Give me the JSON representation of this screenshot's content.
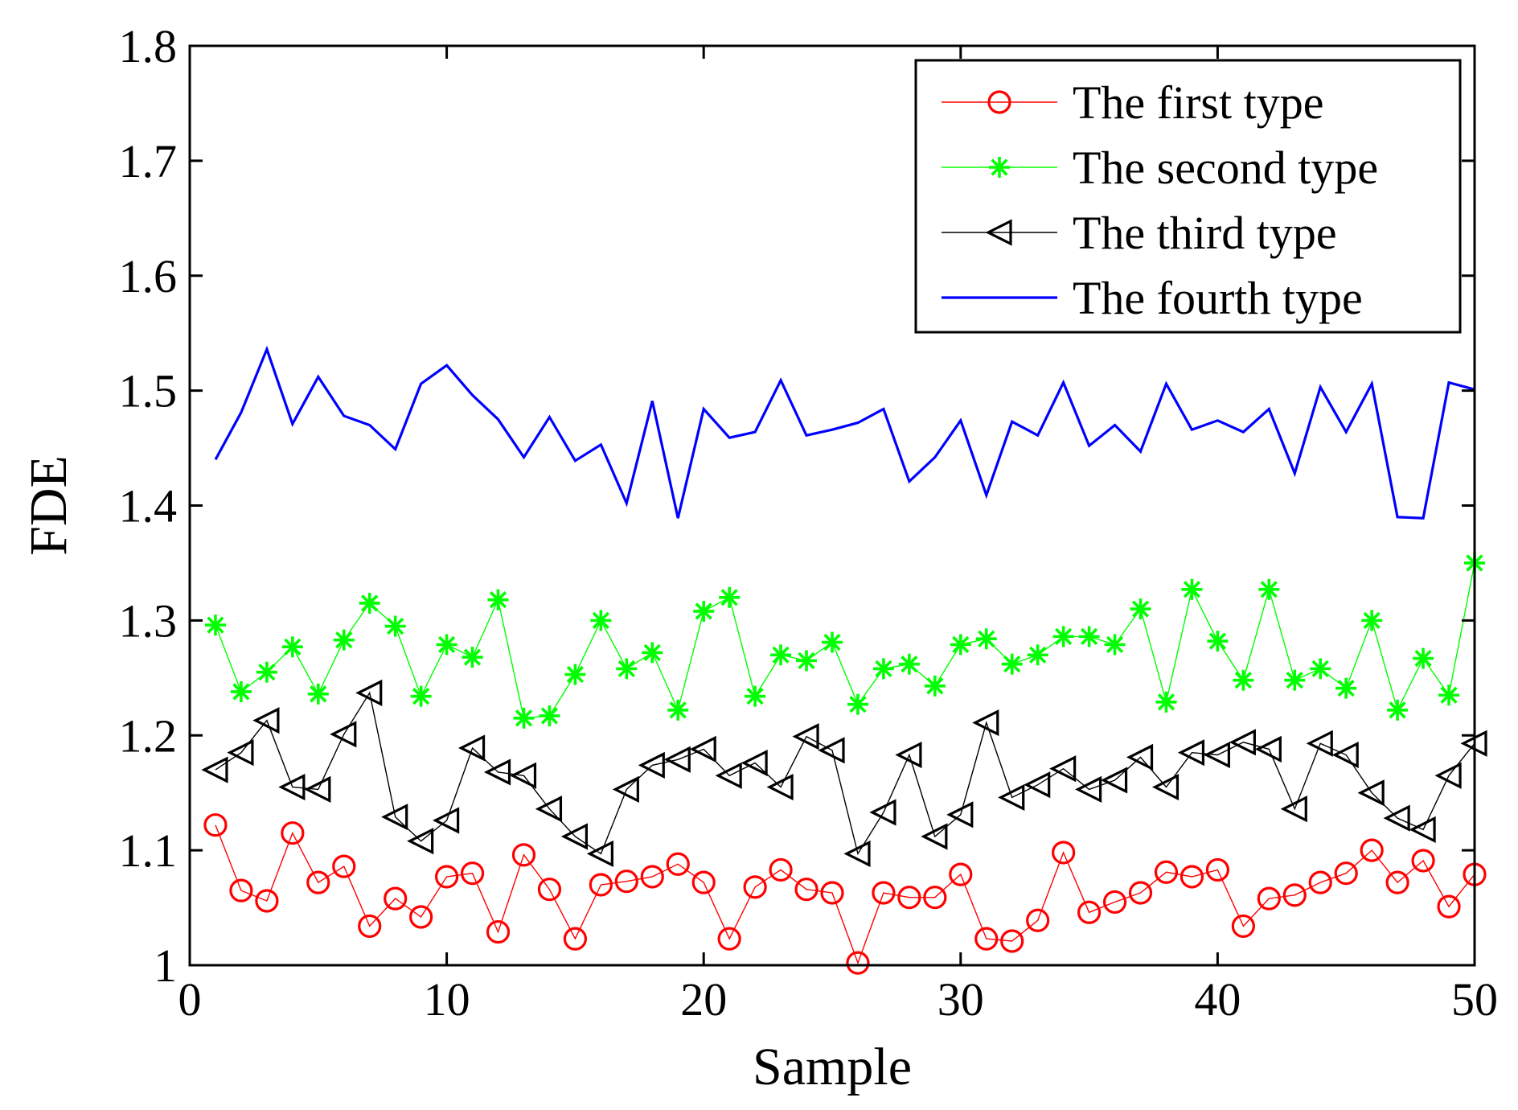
{
  "chart_data": {
    "type": "line",
    "title": "",
    "xlabel": "Sample",
    "ylabel": "FDE",
    "xlim": [
      0,
      50
    ],
    "ylim": [
      1,
      1.8
    ],
    "xticks": [
      0,
      10,
      20,
      30,
      40,
      50
    ],
    "yticks": [
      1,
      1.1,
      1.2,
      1.3,
      1.4,
      1.5,
      1.6,
      1.7,
      1.8
    ],
    "xtick_labels": [
      "0",
      "10",
      "20",
      "30",
      "40",
      "50"
    ],
    "ytick_labels": [
      "1",
      "1.1",
      "1.2",
      "1.3",
      "1.4",
      "1.5",
      "1.6",
      "1.7",
      "1.8"
    ],
    "grid": false,
    "legend_position": "top-right",
    "x": [
      1,
      2,
      3,
      4,
      5,
      6,
      7,
      8,
      9,
      10,
      11,
      12,
      13,
      14,
      15,
      16,
      17,
      18,
      19,
      20,
      21,
      22,
      23,
      24,
      25,
      26,
      27,
      28,
      29,
      30,
      31,
      32,
      33,
      34,
      35,
      36,
      37,
      38,
      39,
      40,
      41,
      42,
      43,
      44,
      45,
      46,
      47,
      48,
      49,
      50
    ],
    "series": [
      {
        "name": "The first type",
        "color": "#ff0000",
        "marker": "circle",
        "values": [
          1.122,
          1.065,
          1.056,
          1.115,
          1.072,
          1.086,
          1.034,
          1.058,
          1.042,
          1.077,
          1.08,
          1.029,
          1.096,
          1.066,
          1.023,
          1.07,
          1.073,
          1.077,
          1.088,
          1.072,
          1.023,
          1.068,
          1.083,
          1.066,
          1.063,
          1.002,
          1.063,
          1.059,
          1.059,
          1.079,
          1.023,
          1.021,
          1.039,
          1.098,
          1.046,
          1.055,
          1.063,
          1.081,
          1.077,
          1.083,
          1.034,
          1.058,
          1.061,
          1.072,
          1.08,
          1.1,
          1.072,
          1.091,
          1.051,
          1.079
        ]
      },
      {
        "name": "The second type",
        "color": "#00ff00",
        "marker": "star",
        "values": [
          1.296,
          1.238,
          1.255,
          1.277,
          1.236,
          1.283,
          1.315,
          1.295,
          1.234,
          1.279,
          1.268,
          1.318,
          1.215,
          1.217,
          1.253,
          1.3,
          1.258,
          1.272,
          1.222,
          1.308,
          1.32,
          1.234,
          1.27,
          1.265,
          1.281,
          1.227,
          1.258,
          1.262,
          1.243,
          1.279,
          1.284,
          1.262,
          1.27,
          1.286,
          1.286,
          1.279,
          1.31,
          1.229,
          1.327,
          1.282,
          1.248,
          1.327,
          1.248,
          1.258,
          1.241,
          1.3,
          1.222,
          1.267,
          1.235,
          1.35
        ]
      },
      {
        "name": "The third type",
        "color": "#000000",
        "marker": "triangle-left",
        "values": [
          1.17,
          1.185,
          1.213,
          1.155,
          1.153,
          1.201,
          1.237,
          1.129,
          1.108,
          1.126,
          1.189,
          1.168,
          1.165,
          1.136,
          1.112,
          1.097,
          1.153,
          1.174,
          1.179,
          1.188,
          1.165,
          1.176,
          1.155,
          1.199,
          1.187,
          1.097,
          1.133,
          1.183,
          1.112,
          1.131,
          1.211,
          1.146,
          1.157,
          1.171,
          1.153,
          1.161,
          1.181,
          1.155,
          1.185,
          1.183,
          1.194,
          1.188,
          1.136,
          1.193,
          1.183,
          1.15,
          1.128,
          1.118,
          1.165,
          1.193
        ]
      },
      {
        "name": "The fourth type",
        "color": "#0000ff",
        "marker": "none",
        "values": [
          1.44,
          1.481,
          1.536,
          1.471,
          1.512,
          1.478,
          1.47,
          1.449,
          1.506,
          1.522,
          1.496,
          1.475,
          1.442,
          1.477,
          1.439,
          1.453,
          1.402,
          1.491,
          1.389,
          1.484,
          1.459,
          1.464,
          1.509,
          1.461,
          1.466,
          1.472,
          1.484,
          1.421,
          1.442,
          1.474,
          1.409,
          1.473,
          1.461,
          1.507,
          1.452,
          1.47,
          1.447,
          1.506,
          1.466,
          1.474,
          1.464,
          1.484,
          1.428,
          1.503,
          1.464,
          1.506,
          1.39,
          1.389,
          1.507,
          1.501
        ]
      }
    ]
  }
}
